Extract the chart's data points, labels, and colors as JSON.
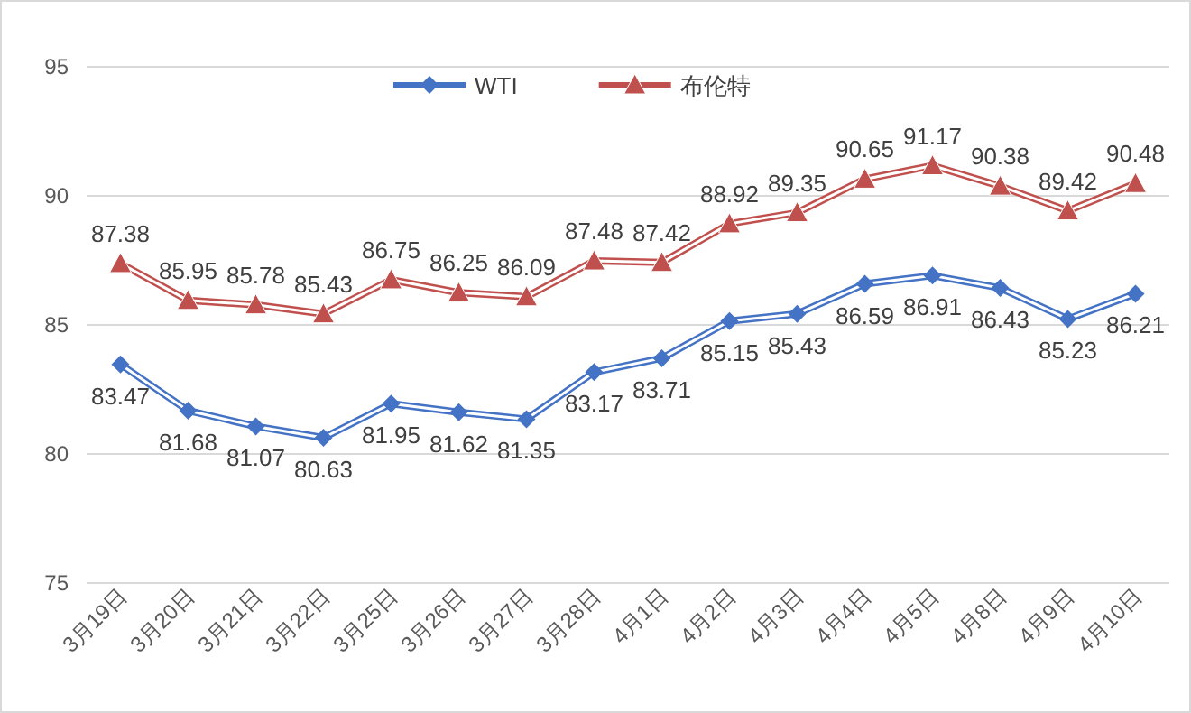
{
  "chart_data": {
    "type": "line",
    "categories": [
      "3月19日",
      "3月20日",
      "3月21日",
      "3月22日",
      "3月25日",
      "3月26日",
      "3月27日",
      "3月28日",
      "4月1日",
      "4月2日",
      "4月3日",
      "4月4日",
      "4月5日",
      "4月8日",
      "4月9日",
      "4月10日"
    ],
    "series": [
      {
        "name": "WTI",
        "color": "#4472c4",
        "marker": "diamond",
        "values": [
          83.47,
          81.68,
          81.07,
          80.63,
          81.95,
          81.62,
          81.35,
          83.17,
          83.71,
          85.15,
          85.43,
          86.59,
          86.91,
          86.43,
          85.23,
          86.21
        ]
      },
      {
        "name": "布伦特",
        "color": "#c0504d",
        "marker": "triangle",
        "values": [
          87.38,
          85.95,
          85.78,
          85.43,
          86.75,
          86.25,
          86.09,
          87.48,
          87.42,
          88.92,
          89.35,
          90.65,
          91.17,
          90.38,
          89.42,
          90.48
        ]
      }
    ],
    "ylim": [
      75,
      95
    ],
    "yticks": [
      75,
      80,
      85,
      90,
      95
    ],
    "grid": "y",
    "legend": "top",
    "data_labels": true
  }
}
